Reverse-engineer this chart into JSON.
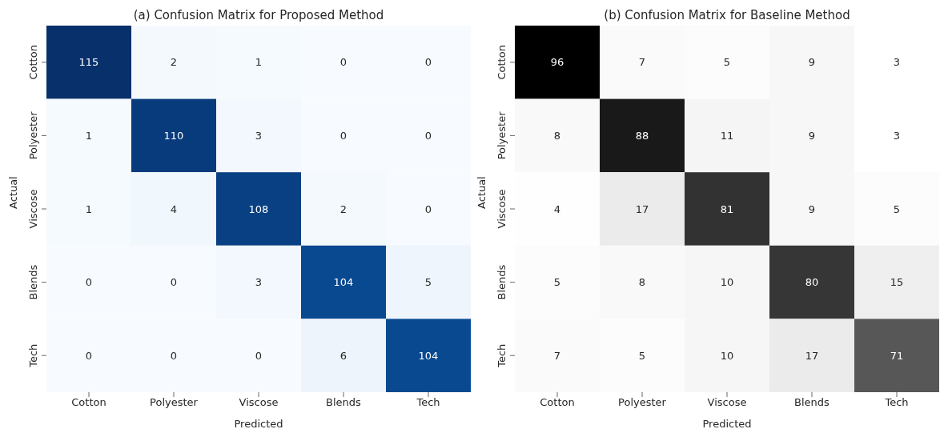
{
  "chart_data": [
    {
      "type": "heatmap",
      "title": "(a) Confusion Matrix for Proposed Method",
      "xlabel": "Predicted",
      "ylabel": "Actual",
      "categories": [
        "Cotton",
        "Polyester",
        "Viscose",
        "Blends",
        "Tech"
      ],
      "y_categories": [
        "Cotton",
        "Polyester",
        "Viscose",
        "Blends",
        "Tech"
      ],
      "data_labels": true,
      "cells": [
        [
          115,
          2,
          1,
          0,
          0
        ],
        [
          1,
          110,
          3,
          0,
          0
        ],
        [
          1,
          4,
          108,
          2,
          0
        ],
        [
          0,
          0,
          3,
          104,
          5
        ],
        [
          0,
          0,
          0,
          6,
          104
        ]
      ]
    },
    {
      "type": "heatmap",
      "title": "(b) Confusion Matrix for Baseline Method",
      "xlabel": "Predicted",
      "ylabel": "Actual",
      "categories": [
        "Cotton",
        "Polyester",
        "Viscose",
        "Blends",
        "Tech"
      ],
      "y_categories": [
        "Cotton",
        "Polyester",
        "Viscose",
        "Blends",
        "Tech"
      ],
      "data_labels": true,
      "cells": [
        [
          96,
          7,
          5,
          9,
          3
        ],
        [
          8,
          88,
          11,
          9,
          3
        ],
        [
          4,
          17,
          81,
          9,
          5
        ],
        [
          5,
          8,
          10,
          80,
          15
        ],
        [
          7,
          5,
          10,
          17,
          71
        ]
      ]
    }
  ]
}
